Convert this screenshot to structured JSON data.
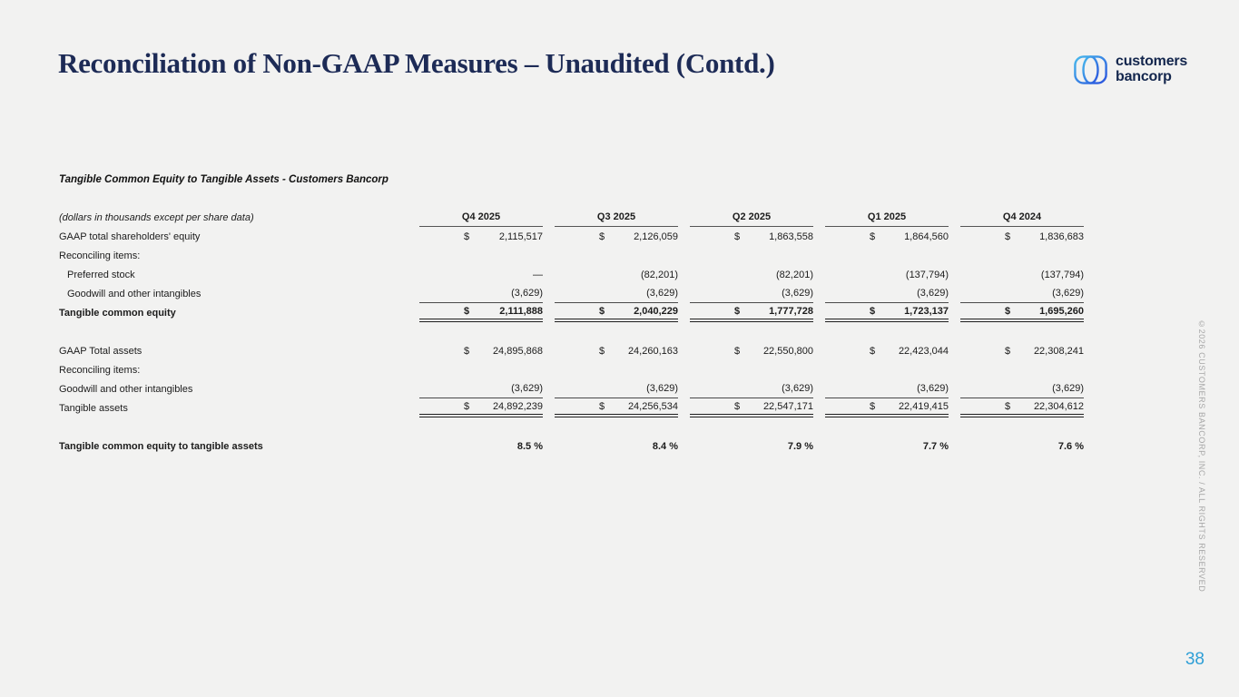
{
  "header": {
    "title": "Reconciliation of Non-GAAP Measures – Unaudited (Contd.)",
    "logo": {
      "line1": "customers",
      "line2": "bancorp"
    }
  },
  "table": {
    "section_title": "Tangible Common Equity to Tangible Assets - Customers Bancorp",
    "caption": "(dollars in thousands except per share data)",
    "columns": [
      "Q4 2025",
      "Q3 2025",
      "Q2 2025",
      "Q1 2025",
      "Q4 2024"
    ],
    "rows": [
      {
        "label": "GAAP total shareholders' equity",
        "dollar": true,
        "values": [
          "2,115,517",
          "2,126,059",
          "1,863,558",
          "1,864,560",
          "1,836,683"
        ]
      },
      {
        "label": "Reconciling items:"
      },
      {
        "label": "Preferred stock",
        "indent": true,
        "values": [
          "—",
          "(82,201)",
          "(82,201)",
          "(137,794)",
          "(137,794)"
        ]
      },
      {
        "label": "Goodwill and other intangibles",
        "indent": true,
        "rule": "single",
        "values": [
          "(3,629)",
          "(3,629)",
          "(3,629)",
          "(3,629)",
          "(3,629)"
        ]
      },
      {
        "label": "Tangible common equity",
        "bold": true,
        "dollar": true,
        "rule": "double",
        "values": [
          "2,111,888",
          "2,040,229",
          "1,777,728",
          "1,723,137",
          "1,695,260"
        ]
      },
      {
        "spacer": true
      },
      {
        "label": "GAAP Total assets",
        "dollar": true,
        "values": [
          "24,895,868",
          "24,260,163",
          "22,550,800",
          "22,423,044",
          "22,308,241"
        ]
      },
      {
        "label": "Reconciling items:"
      },
      {
        "label": "Goodwill and other intangibles",
        "rule": "single",
        "values": [
          "(3,629)",
          "(3,629)",
          "(3,629)",
          "(3,629)",
          "(3,629)"
        ]
      },
      {
        "label": "Tangible assets",
        "dollar": true,
        "rule": "double",
        "values": [
          "24,892,239",
          "24,256,534",
          "22,547,171",
          "22,419,415",
          "22,304,612"
        ]
      },
      {
        "spacer": true
      },
      {
        "label": "Tangible common equity to tangible assets",
        "bold": true,
        "values": [
          "8.5 %",
          "8.4 %",
          "7.9 %",
          "7.7 %",
          "7.6 %"
        ]
      }
    ]
  },
  "footer": {
    "copyright": "©2026 CUSTOMERS BANCORP, INC. / ALL RIGHTS RESERVED",
    "page_number": "38"
  },
  "colors": {
    "background": "#f2f2f1",
    "title_navy": "#1d2b56",
    "logo_navy": "#13264d",
    "logo_blue_light": "#47b9ec",
    "logo_blue_dark": "#2a52dd",
    "rule_gray": "#4a4a4a",
    "copyright_gray": "#a7a7a7",
    "page_number_blue": "#2f9fd6"
  }
}
